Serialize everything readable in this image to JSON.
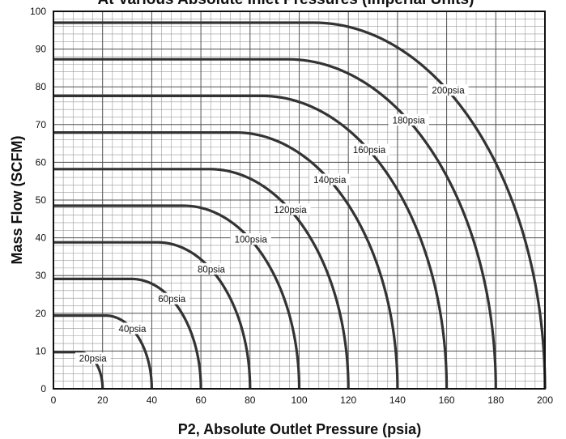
{
  "chart_data": {
    "type": "line",
    "title": "At Various Absolute Inlet Pressures (Imperial Units)",
    "xlabel": "P2, Absolute Outlet Pressure (psia)",
    "ylabel": "Mass Flow (SCFM)",
    "xlim": [
      0,
      200
    ],
    "ylim": [
      0,
      100
    ],
    "x_ticks": [
      0,
      20,
      40,
      60,
      80,
      100,
      120,
      140,
      160,
      180,
      200
    ],
    "y_ticks": [
      0,
      10,
      20,
      30,
      40,
      50,
      60,
      70,
      80,
      90,
      100
    ],
    "grid": true,
    "minor_grid": true,
    "line_color": "#333333",
    "series": [
      {
        "name": "20psia",
        "inlet_pressure": 20,
        "choked_flow": 9.7
      },
      {
        "name": "40psia",
        "inlet_pressure": 40,
        "choked_flow": 19.4
      },
      {
        "name": "60psia",
        "inlet_pressure": 60,
        "choked_flow": 29.1
      },
      {
        "name": "80psia",
        "inlet_pressure": 80,
        "choked_flow": 38.8
      },
      {
        "name": "100psia",
        "inlet_pressure": 100,
        "choked_flow": 48.5
      },
      {
        "name": "120psia",
        "inlet_pressure": 120,
        "choked_flow": 58.2
      },
      {
        "name": "140psia",
        "inlet_pressure": 140,
        "choked_flow": 67.9
      },
      {
        "name": "160psia",
        "inlet_pressure": 160,
        "choked_flow": 77.6
      },
      {
        "name": "180psia",
        "inlet_pressure": 180,
        "choked_flow": 87.3
      },
      {
        "name": "200psia",
        "inlet_pressure": 200,
        "choked_flow": 97.0
      }
    ]
  }
}
